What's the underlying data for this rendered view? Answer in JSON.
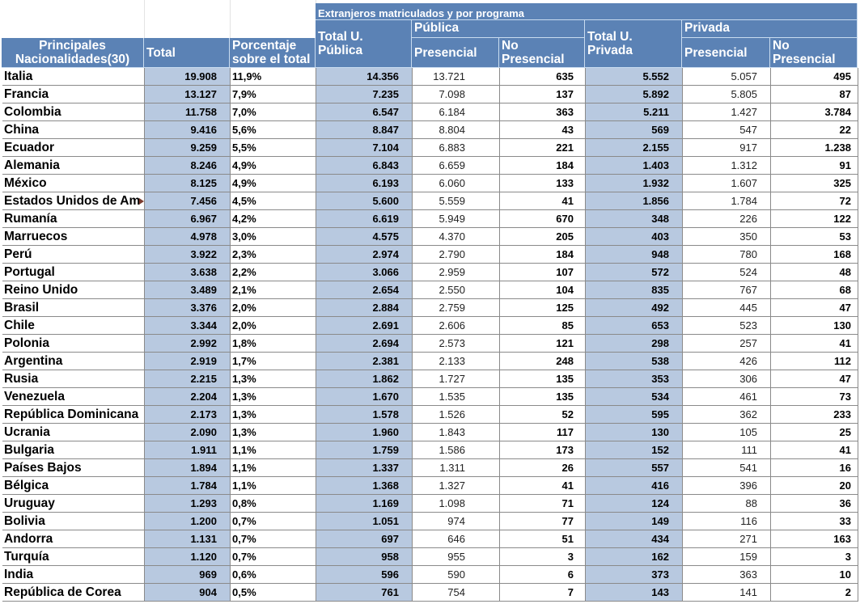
{
  "header": {
    "group_title": "Extranjeros matriculados y por programa",
    "col_nationality": "Principales Nacionalidades(30)",
    "col_total": "Total",
    "col_percent": "Porcentaje sobre el total",
    "col_total_publica": "Total U. Pública",
    "group_publica": "Pública",
    "col_pub_presencial": "Presencial",
    "col_pub_no_presencial": "No Presencial",
    "col_total_privada": "Total U. Privada",
    "group_privada": "Privada",
    "col_priv_presencial": "Presencial",
    "col_priv_no_presencial": "No Presencial"
  },
  "colors": {
    "header_bg": "#5b82b5",
    "header_text": "#ffffff",
    "highlight_column": "#b8c9e0",
    "grid": "#8a8a8a"
  },
  "rows": [
    {
      "name": "Italia",
      "total": "19.908",
      "pct": "11,9%",
      "tpub": "14.356",
      "pub_pres": "13.721",
      "pub_nopres": "635",
      "tpriv": "5.552",
      "priv_pres": "5.057",
      "priv_nopres": "495"
    },
    {
      "name": "Francia",
      "total": "13.127",
      "pct": "7,9%",
      "tpub": "7.235",
      "pub_pres": "7.098",
      "pub_nopres": "137",
      "tpriv": "5.892",
      "priv_pres": "5.805",
      "priv_nopres": "87"
    },
    {
      "name": "Colombia",
      "total": "11.758",
      "pct": "7,0%",
      "tpub": "6.547",
      "pub_pres": "6.184",
      "pub_nopres": "363",
      "tpriv": "5.211",
      "priv_pres": "1.427",
      "priv_nopres": "3.784"
    },
    {
      "name": "China",
      "total": "9.416",
      "pct": "5,6%",
      "tpub": "8.847",
      "pub_pres": "8.804",
      "pub_nopres": "43",
      "tpriv": "569",
      "priv_pres": "547",
      "priv_nopres": "22"
    },
    {
      "name": "Ecuador",
      "total": "9.259",
      "pct": "5,5%",
      "tpub": "7.104",
      "pub_pres": "6.883",
      "pub_nopres": "221",
      "tpriv": "2.155",
      "priv_pres": "917",
      "priv_nopres": "1.238"
    },
    {
      "name": "Alemania",
      "total": "8.246",
      "pct": "4,9%",
      "tpub": "6.843",
      "pub_pres": "6.659",
      "pub_nopres": "184",
      "tpriv": "1.403",
      "priv_pres": "1.312",
      "priv_nopres": "91"
    },
    {
      "name": "México",
      "total": "8.125",
      "pct": "4,9%",
      "tpub": "6.193",
      "pub_pres": "6.060",
      "pub_nopres": "133",
      "tpriv": "1.932",
      "priv_pres": "1.607",
      "priv_nopres": "325"
    },
    {
      "name": "Estados Unidos de Am",
      "total": "7.456",
      "pct": "4,5%",
      "tpub": "5.600",
      "pub_pres": "5.559",
      "pub_nopres": "41",
      "tpriv": "1.856",
      "priv_pres": "1.784",
      "priv_nopres": "72",
      "truncated": true
    },
    {
      "name": "Rumanía",
      "total": "6.967",
      "pct": "4,2%",
      "tpub": "6.619",
      "pub_pres": "5.949",
      "pub_nopres": "670",
      "tpriv": "348",
      "priv_pres": "226",
      "priv_nopres": "122"
    },
    {
      "name": "Marruecos",
      "total": "4.978",
      "pct": "3,0%",
      "tpub": "4.575",
      "pub_pres": "4.370",
      "pub_nopres": "205",
      "tpriv": "403",
      "priv_pres": "350",
      "priv_nopres": "53"
    },
    {
      "name": "Perú",
      "total": "3.922",
      "pct": "2,3%",
      "tpub": "2.974",
      "pub_pres": "2.790",
      "pub_nopres": "184",
      "tpriv": "948",
      "priv_pres": "780",
      "priv_nopres": "168"
    },
    {
      "name": "Portugal",
      "total": "3.638",
      "pct": "2,2%",
      "tpub": "3.066",
      "pub_pres": "2.959",
      "pub_nopres": "107",
      "tpriv": "572",
      "priv_pres": "524",
      "priv_nopres": "48"
    },
    {
      "name": "Reino Unido",
      "total": "3.489",
      "pct": "2,1%",
      "tpub": "2.654",
      "pub_pres": "2.550",
      "pub_nopres": "104",
      "tpriv": "835",
      "priv_pres": "767",
      "priv_nopres": "68"
    },
    {
      "name": "Brasil",
      "total": "3.376",
      "pct": "2,0%",
      "tpub": "2.884",
      "pub_pres": "2.759",
      "pub_nopres": "125",
      "tpriv": "492",
      "priv_pres": "445",
      "priv_nopres": "47"
    },
    {
      "name": "Chile",
      "total": "3.344",
      "pct": "2,0%",
      "tpub": "2.691",
      "pub_pres": "2.606",
      "pub_nopres": "85",
      "tpriv": "653",
      "priv_pres": "523",
      "priv_nopres": "130"
    },
    {
      "name": "Polonia",
      "total": "2.992",
      "pct": "1,8%",
      "tpub": "2.694",
      "pub_pres": "2.573",
      "pub_nopres": "121",
      "tpriv": "298",
      "priv_pres": "257",
      "priv_nopres": "41"
    },
    {
      "name": "Argentina",
      "total": "2.919",
      "pct": "1,7%",
      "tpub": "2.381",
      "pub_pres": "2.133",
      "pub_nopres": "248",
      "tpriv": "538",
      "priv_pres": "426",
      "priv_nopres": "112"
    },
    {
      "name": "Rusia",
      "total": "2.215",
      "pct": "1,3%",
      "tpub": "1.862",
      "pub_pres": "1.727",
      "pub_nopres": "135",
      "tpriv": "353",
      "priv_pres": "306",
      "priv_nopres": "47"
    },
    {
      "name": "Venezuela",
      "total": "2.204",
      "pct": "1,3%",
      "tpub": "1.670",
      "pub_pres": "1.535",
      "pub_nopres": "135",
      "tpriv": "534",
      "priv_pres": "461",
      "priv_nopres": "73"
    },
    {
      "name": "República Dominicana",
      "total": "2.173",
      "pct": "1,3%",
      "tpub": "1.578",
      "pub_pres": "1.526",
      "pub_nopres": "52",
      "tpriv": "595",
      "priv_pres": "362",
      "priv_nopres": "233"
    },
    {
      "name": "Ucrania",
      "total": "2.090",
      "pct": "1,3%",
      "tpub": "1.960",
      "pub_pres": "1.843",
      "pub_nopres": "117",
      "tpriv": "130",
      "priv_pres": "105",
      "priv_nopres": "25"
    },
    {
      "name": "Bulgaria",
      "total": "1.911",
      "pct": "1,1%",
      "tpub": "1.759",
      "pub_pres": "1.586",
      "pub_nopres": "173",
      "tpriv": "152",
      "priv_pres": "111",
      "priv_nopres": "41"
    },
    {
      "name": "Países Bajos",
      "total": "1.894",
      "pct": "1,1%",
      "tpub": "1.337",
      "pub_pres": "1.311",
      "pub_nopres": "26",
      "tpriv": "557",
      "priv_pres": "541",
      "priv_nopres": "16"
    },
    {
      "name": "Bélgica",
      "total": "1.784",
      "pct": "1,1%",
      "tpub": "1.368",
      "pub_pres": "1.327",
      "pub_nopres": "41",
      "tpriv": "416",
      "priv_pres": "396",
      "priv_nopres": "20"
    },
    {
      "name": "Uruguay",
      "total": "1.293",
      "pct": "0,8%",
      "tpub": "1.169",
      "pub_pres": "1.098",
      "pub_nopres": "71",
      "tpriv": "124",
      "priv_pres": "88",
      "priv_nopres": "36"
    },
    {
      "name": "Bolivia",
      "total": "1.200",
      "pct": "0,7%",
      "tpub": "1.051",
      "pub_pres": "974",
      "pub_nopres": "77",
      "tpriv": "149",
      "priv_pres": "116",
      "priv_nopres": "33"
    },
    {
      "name": "Andorra",
      "total": "1.131",
      "pct": "0,7%",
      "tpub": "697",
      "pub_pres": "646",
      "pub_nopres": "51",
      "tpriv": "434",
      "priv_pres": "271",
      "priv_nopres": "163"
    },
    {
      "name": "Turquía",
      "total": "1.120",
      "pct": "0,7%",
      "tpub": "958",
      "pub_pres": "955",
      "pub_nopres": "3",
      "tpriv": "162",
      "priv_pres": "159",
      "priv_nopres": "3"
    },
    {
      "name": "India",
      "total": "969",
      "pct": "0,6%",
      "tpub": "596",
      "pub_pres": "590",
      "pub_nopres": "6",
      "tpriv": "373",
      "priv_pres": "363",
      "priv_nopres": "10"
    },
    {
      "name": "República de Corea",
      "total": "904",
      "pct": "0,5%",
      "tpub": "761",
      "pub_pres": "754",
      "pub_nopres": "7",
      "tpriv": "143",
      "priv_pres": "141",
      "priv_nopres": "2"
    }
  ]
}
